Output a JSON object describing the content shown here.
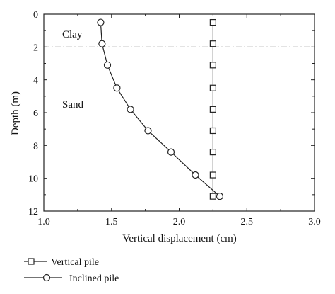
{
  "chart_data": {
    "type": "line",
    "xlabel": "Vertical displacement (cm)",
    "ylabel": "Depth (m)",
    "xlim": [
      1.0,
      3.0
    ],
    "ylim": [
      0,
      12
    ],
    "y_inverted": true,
    "x_ticks": [
      "1.0",
      "1.5",
      "2.0",
      "2.5",
      "3.0"
    ],
    "y_ticks": [
      "0",
      "2",
      "4",
      "6",
      "8",
      "10",
      "12"
    ],
    "grid": false,
    "legend_position": "bottom-left",
    "annotations": [
      {
        "text": "Clay"
      },
      {
        "text": "Sand"
      }
    ],
    "reference_line": {
      "depth": 2.0,
      "style": "dash-dot"
    },
    "series": [
      {
        "name": "Vertical pile",
        "marker": "square",
        "x": [
          2.25,
          2.25,
          2.25,
          2.25,
          2.25,
          2.25,
          2.25,
          2.25,
          2.25
        ],
        "y": [
          0.5,
          1.8,
          3.1,
          4.5,
          5.8,
          7.1,
          8.4,
          9.8,
          11.1
        ]
      },
      {
        "name": "Inclined pile",
        "marker": "circle",
        "x": [
          1.42,
          1.43,
          1.47,
          1.54,
          1.64,
          1.77,
          1.94,
          2.12,
          2.3
        ],
        "y": [
          0.5,
          1.8,
          3.1,
          4.5,
          5.8,
          7.1,
          8.4,
          9.8,
          11.1
        ]
      }
    ]
  }
}
